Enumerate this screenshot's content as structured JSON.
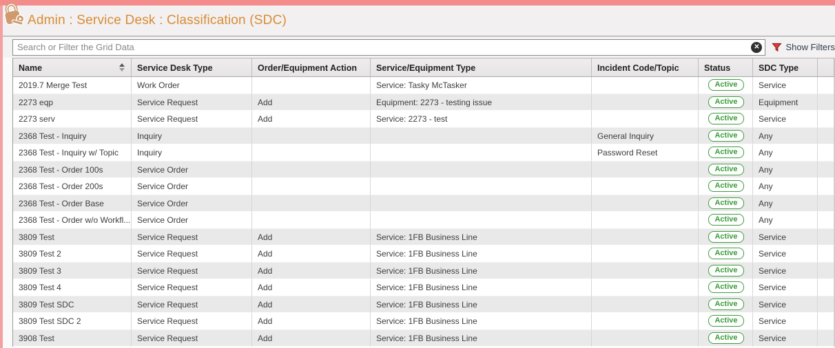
{
  "header": {
    "title": "Admin : Service Desk : Classification (SDC)",
    "icon": "lock-and-key-icon"
  },
  "search": {
    "placeholder": "Search or Filter the Grid Data",
    "value": "",
    "clear_icon": "x",
    "show_filters_label": "Show Filters"
  },
  "table": {
    "columns": [
      "Name",
      "Service Desk Type",
      "Order/Equipment Action",
      "Service/Equipment Type",
      "Incident Code/Topic",
      "Status",
      "SDC Type"
    ],
    "sorted_column": "Name",
    "rows": [
      {
        "name": "2019.7 Merge Test",
        "service_desk_type": "Work Order",
        "order_equipment_action": "",
        "service_equipment_type": "Service: Tasky McTasker",
        "incident_code_topic": "",
        "status": "Active",
        "sdc_type": "Service"
      },
      {
        "name": "2273 eqp",
        "service_desk_type": "Service Request",
        "order_equipment_action": "Add",
        "service_equipment_type": "Equipment: 2273 - testing issue",
        "incident_code_topic": "",
        "status": "Active",
        "sdc_type": "Equipment"
      },
      {
        "name": "2273 serv",
        "service_desk_type": "Service Request",
        "order_equipment_action": "Add",
        "service_equipment_type": "Service: 2273 - test",
        "incident_code_topic": "",
        "status": "Active",
        "sdc_type": "Service"
      },
      {
        "name": "2368 Test - Inquiry",
        "service_desk_type": "Inquiry",
        "order_equipment_action": "",
        "service_equipment_type": "",
        "incident_code_topic": "General Inquiry",
        "status": "Active",
        "sdc_type": "Any"
      },
      {
        "name": "2368 Test - Inquiry w/ Topic",
        "service_desk_type": "Inquiry",
        "order_equipment_action": "",
        "service_equipment_type": "",
        "incident_code_topic": "Password Reset",
        "status": "Active",
        "sdc_type": "Any"
      },
      {
        "name": "2368 Test - Order 100s",
        "service_desk_type": "Service Order",
        "order_equipment_action": "",
        "service_equipment_type": "",
        "incident_code_topic": "",
        "status": "Active",
        "sdc_type": "Any"
      },
      {
        "name": "2368 Test - Order 200s",
        "service_desk_type": "Service Order",
        "order_equipment_action": "",
        "service_equipment_type": "",
        "incident_code_topic": "",
        "status": "Active",
        "sdc_type": "Any"
      },
      {
        "name": "2368 Test - Order Base",
        "service_desk_type": "Service Order",
        "order_equipment_action": "",
        "service_equipment_type": "",
        "incident_code_topic": "",
        "status": "Active",
        "sdc_type": "Any"
      },
      {
        "name": "2368 Test - Order w/o Workfl...",
        "service_desk_type": "Service Order",
        "order_equipment_action": "",
        "service_equipment_type": "",
        "incident_code_topic": "",
        "status": "Active",
        "sdc_type": "Any"
      },
      {
        "name": "3809 Test",
        "service_desk_type": "Service Request",
        "order_equipment_action": "Add",
        "service_equipment_type": "Service: 1FB Business Line",
        "incident_code_topic": "",
        "status": "Active",
        "sdc_type": "Service"
      },
      {
        "name": "3809 Test 2",
        "service_desk_type": "Service Request",
        "order_equipment_action": "Add",
        "service_equipment_type": "Service: 1FB Business Line",
        "incident_code_topic": "",
        "status": "Active",
        "sdc_type": "Service"
      },
      {
        "name": "3809 Test 3",
        "service_desk_type": "Service Request",
        "order_equipment_action": "Add",
        "service_equipment_type": "Service: 1FB Business Line",
        "incident_code_topic": "",
        "status": "Active",
        "sdc_type": "Service"
      },
      {
        "name": "3809 Test 4",
        "service_desk_type": "Service Request",
        "order_equipment_action": "Add",
        "service_equipment_type": "Service: 1FB Business Line",
        "incident_code_topic": "",
        "status": "Active",
        "sdc_type": "Service"
      },
      {
        "name": "3809 Test SDC",
        "service_desk_type": "Service Request",
        "order_equipment_action": "Add",
        "service_equipment_type": "Service: 1FB Business Line",
        "incident_code_topic": "",
        "status": "Active",
        "sdc_type": "Service"
      },
      {
        "name": "3809 Test SDC 2",
        "service_desk_type": "Service Request",
        "order_equipment_action": "Add",
        "service_equipment_type": "Service: 1FB Business Line",
        "incident_code_topic": "",
        "status": "Active",
        "sdc_type": "Service"
      },
      {
        "name": "3908 Test",
        "service_desk_type": "Service Request",
        "order_equipment_action": "Add",
        "service_equipment_type": "Service: 1FB Business Line",
        "incident_code_topic": "",
        "status": "Active",
        "sdc_type": "Service"
      }
    ]
  },
  "colors": {
    "top_bar": "#f48c8c",
    "left_strip": "#f2a0a0",
    "title": "#d98c35",
    "badge_green": "#3d9c3d",
    "funnel_red": "#e53935",
    "icon_tan": "#cf9b6e"
  }
}
